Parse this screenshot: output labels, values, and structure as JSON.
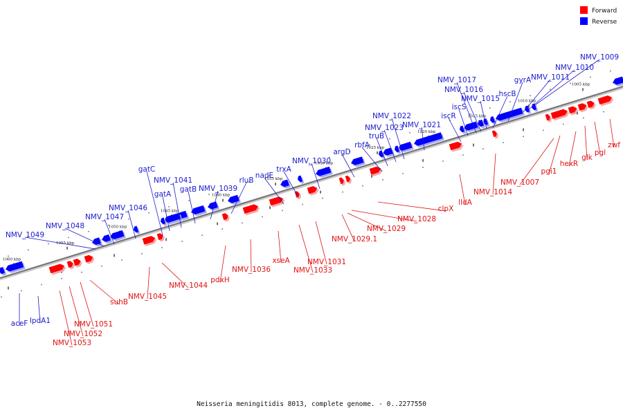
{
  "caption": "Neisseria meningitidis 8013, complete genome. - 0..2277550",
  "legend": [
    {
      "label": "Forward",
      "color": "#ff0000"
    },
    {
      "label": "Reverse",
      "color": "#0000ff"
    }
  ],
  "colors": {
    "forward": "#ff0000",
    "reverse": "#0000ff",
    "forward_shade": "#f2a8a8",
    "reverse_shade": "#a8a8f0",
    "backbone": "#777777"
  },
  "kbp_labels": [
    "1005 kbp",
    "1010 kbp",
    "1015 kbp",
    "1020 kbp",
    "1025 kbp",
    "1030 kbp",
    "1035 kbp",
    "1040 kbp",
    "1045 kbp",
    "1050 kbp",
    "1055 kbp",
    "1060 kbp"
  ],
  "reverse_genes": [
    "NMV_1009",
    "NMV_1010",
    "NMV_1011",
    "gyrA",
    "hscB",
    "NMV_1015",
    "NMV_1016",
    "NMV_1017",
    "iscS",
    "iscR",
    "NMV_1021",
    "NMV_1022",
    "NMV_1023",
    "truB",
    "rbfA",
    "argD",
    "NMV_1030",
    "trxA",
    "nadE",
    "rluB",
    "NMV_1039",
    "gatB",
    "NMV_1041",
    "gatA",
    "gatC",
    "NMV_1046",
    "NMV_1047",
    "NMV_1048",
    "NMV_1049",
    "aceF",
    "lpdA1"
  ],
  "forward_genes": [
    "zwf",
    "pgl",
    "glk",
    "hexR",
    "pgi1",
    "NMV_1007",
    "NMV_1014",
    "lldA",
    "clpX",
    "NMV_1028",
    "NMV_1029",
    "NMV_1029.1",
    "NMV_1031",
    "NMV_1033",
    "xseA",
    "NMV_1036",
    "pdxH",
    "NMV_1044",
    "NMV_1045",
    "suhB",
    "NMV_1051",
    "NMV_1052",
    "NMV_1053"
  ]
}
